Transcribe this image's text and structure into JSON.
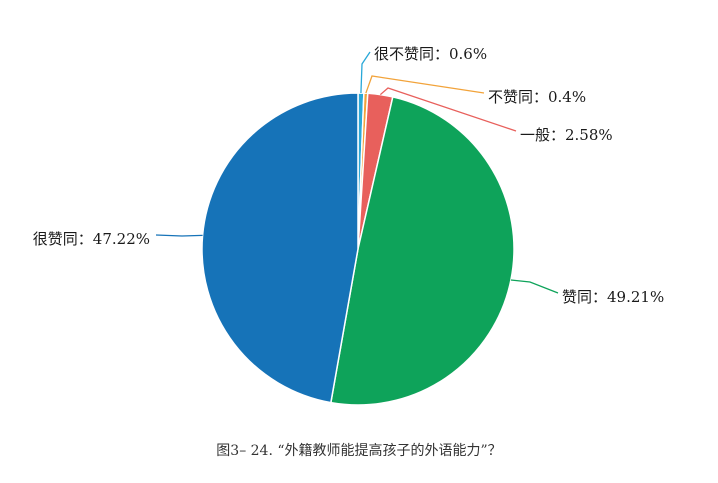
{
  "chart_data": {
    "type": "pie",
    "caption": "图3– 24. “外籍教师能提高孩子的外语能力”？",
    "slices": [
      {
        "name": "很不赞同",
        "value": 0.6,
        "label": "很不赞同：0.6%",
        "color": "#29a8d8"
      },
      {
        "name": "不赞同",
        "value": 0.4,
        "label": "不赞同：0.4%",
        "color": "#f2a33a"
      },
      {
        "name": "一般",
        "value": 2.58,
        "label": "一般：2.58%",
        "color": "#e8605c"
      },
      {
        "name": "赞同",
        "value": 49.21,
        "label": "赞同：49.21%",
        "color": "#0ea35a"
      },
      {
        "name": "很赞同",
        "value": 47.22,
        "label": "很赞同：47.22%",
        "color": "#1673b8"
      }
    ],
    "legend": "none"
  }
}
